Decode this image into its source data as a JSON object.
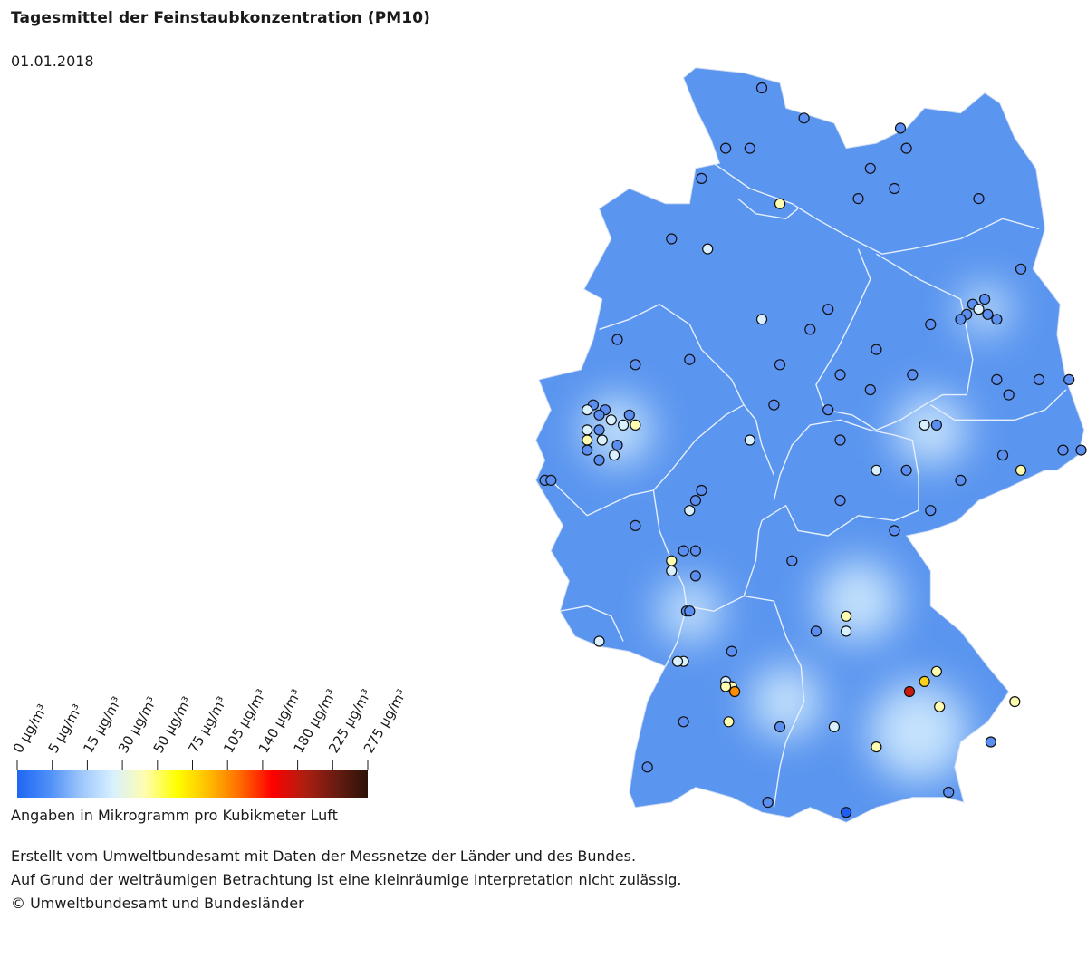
{
  "title": "Tagesmittel der Feinstaubkonzentration (PM10)",
  "date": "01.01.2018",
  "legend": {
    "unit_caption": "Angaben in Mikrogramm pro Kubikmeter Luft",
    "ticks": [
      "0 µg/m³",
      "5 µg/m³",
      "15 µg/m³",
      "30 µg/m³",
      "50 µg/m³",
      "75 µg/m³",
      "105 µg/m³",
      "140 µg/m³",
      "180 µg/m³",
      "225 µg/m³",
      "275 µg/m³"
    ],
    "colors": [
      "#1f66f4",
      "#4d8ff6",
      "#9cc6fb",
      "#d8f0ff",
      "#fffdb0",
      "#ffff00",
      "#ffbe00",
      "#ff6a00",
      "#ff0000",
      "#b01e10",
      "#6a1c12",
      "#2b1208"
    ]
  },
  "footer": {
    "line1": "Erstellt vom Umweltbundesamt mit Daten der Messnetze der Länder und des Bundes.",
    "line2": "Auf Grund der weiträumigen Betrachtung ist eine kleinräumige Interpretation nicht zulässig.",
    "line3": "© Umweltbundesamt und Bundesländer"
  },
  "map": {
    "land_color": "#5a95ef",
    "border_color": "#e6efff",
    "hotspot_color": "#d9f1ff",
    "stations": [
      {
        "lat": 54.7,
        "lon": 9.7,
        "c": "#5a8ef0"
      },
      {
        "lat": 54.4,
        "lon": 10.4,
        "c": "#5a8ef0"
      },
      {
        "lat": 54.1,
        "lon": 9.1,
        "c": "#5a8ef0"
      },
      {
        "lat": 54.1,
        "lon": 9.5,
        "c": "#5a8ef0"
      },
      {
        "lat": 53.8,
        "lon": 8.7,
        "c": "#5a8ef0"
      },
      {
        "lat": 53.55,
        "lon": 10.0,
        "c": "#fffdb0"
      },
      {
        "lat": 54.1,
        "lon": 12.1,
        "c": "#5a8ef0"
      },
      {
        "lat": 54.3,
        "lon": 12.0,
        "c": "#5a8ef0"
      },
      {
        "lat": 53.9,
        "lon": 11.5,
        "c": "#5a8ef0"
      },
      {
        "lat": 53.7,
        "lon": 11.9,
        "c": "#5a8ef0"
      },
      {
        "lat": 53.6,
        "lon": 11.3,
        "c": "#5a8ef0"
      },
      {
        "lat": 53.6,
        "lon": 13.3,
        "c": "#5a8ef0"
      },
      {
        "lat": 53.2,
        "lon": 8.2,
        "c": "#5a8ef0"
      },
      {
        "lat": 53.1,
        "lon": 8.8,
        "c": "#d9f1ff"
      },
      {
        "lat": 52.9,
        "lon": 14.0,
        "c": "#5a8ef0"
      },
      {
        "lat": 52.6,
        "lon": 13.4,
        "c": "#5a8ef0"
      },
      {
        "lat": 52.55,
        "lon": 13.2,
        "c": "#5a8ef0"
      },
      {
        "lat": 52.5,
        "lon": 13.3,
        "c": "#d9f1ff"
      },
      {
        "lat": 52.45,
        "lon": 13.45,
        "c": "#5a8ef0"
      },
      {
        "lat": 52.45,
        "lon": 13.1,
        "c": "#5a8ef0"
      },
      {
        "lat": 52.4,
        "lon": 13.6,
        "c": "#5a8ef0"
      },
      {
        "lat": 52.4,
        "lon": 13.0,
        "c": "#5a8ef0"
      },
      {
        "lat": 52.35,
        "lon": 12.5,
        "c": "#5a8ef0"
      },
      {
        "lat": 52.4,
        "lon": 9.7,
        "c": "#d9f1ff"
      },
      {
        "lat": 52.5,
        "lon": 10.8,
        "c": "#5a8ef0"
      },
      {
        "lat": 52.3,
        "lon": 10.5,
        "c": "#5a8ef0"
      },
      {
        "lat": 52.2,
        "lon": 7.3,
        "c": "#5a8ef0"
      },
      {
        "lat": 52.0,
        "lon": 8.5,
        "c": "#5a8ef0"
      },
      {
        "lat": 51.95,
        "lon": 7.6,
        "c": "#5a8ef0"
      },
      {
        "lat": 52.1,
        "lon": 11.6,
        "c": "#5a8ef0"
      },
      {
        "lat": 51.85,
        "lon": 12.2,
        "c": "#5a8ef0"
      },
      {
        "lat": 51.95,
        "lon": 10.0,
        "c": "#5a8ef0"
      },
      {
        "lat": 51.85,
        "lon": 11.0,
        "c": "#5a8ef0"
      },
      {
        "lat": 51.7,
        "lon": 11.5,
        "c": "#5a8ef0"
      },
      {
        "lat": 51.8,
        "lon": 13.6,
        "c": "#5a8ef0"
      },
      {
        "lat": 51.8,
        "lon": 14.3,
        "c": "#5a8ef0"
      },
      {
        "lat": 51.65,
        "lon": 13.8,
        "c": "#5a8ef0"
      },
      {
        "lat": 51.8,
        "lon": 14.8,
        "c": "#5a8ef0"
      },
      {
        "lat": 51.55,
        "lon": 9.9,
        "c": "#5a8ef0"
      },
      {
        "lat": 51.5,
        "lon": 10.8,
        "c": "#5a8ef0"
      },
      {
        "lat": 51.55,
        "lon": 6.9,
        "c": "#5a8ef0"
      },
      {
        "lat": 51.5,
        "lon": 7.1,
        "c": "#5a8ef0"
      },
      {
        "lat": 51.5,
        "lon": 6.8,
        "c": "#d9f1ff"
      },
      {
        "lat": 51.45,
        "lon": 7.0,
        "c": "#5a8ef0"
      },
      {
        "lat": 51.4,
        "lon": 7.2,
        "c": "#d9f1ff"
      },
      {
        "lat": 51.45,
        "lon": 7.5,
        "c": "#5a8ef0"
      },
      {
        "lat": 51.35,
        "lon": 7.4,
        "c": "#d9f1ff"
      },
      {
        "lat": 51.35,
        "lon": 7.6,
        "c": "#fffdb0"
      },
      {
        "lat": 51.3,
        "lon": 6.8,
        "c": "#d9f1ff"
      },
      {
        "lat": 51.3,
        "lon": 7.0,
        "c": "#5a8ef0"
      },
      {
        "lat": 51.2,
        "lon": 6.8,
        "c": "#fffdb0"
      },
      {
        "lat": 51.2,
        "lon": 7.05,
        "c": "#d9f1ff"
      },
      {
        "lat": 51.15,
        "lon": 7.3,
        "c": "#5a8ef0"
      },
      {
        "lat": 51.1,
        "lon": 6.8,
        "c": "#5a8ef0"
      },
      {
        "lat": 51.0,
        "lon": 7.0,
        "c": "#5a8ef0"
      },
      {
        "lat": 51.05,
        "lon": 7.25,
        "c": "#d9f1ff"
      },
      {
        "lat": 50.8,
        "lon": 6.1,
        "c": "#5a8ef0"
      },
      {
        "lat": 50.8,
        "lon": 6.2,
        "c": "#5a8ef0"
      },
      {
        "lat": 51.35,
        "lon": 12.4,
        "c": "#d9f1ff"
      },
      {
        "lat": 51.35,
        "lon": 12.6,
        "c": "#5a8ef0"
      },
      {
        "lat": 51.2,
        "lon": 11.0,
        "c": "#5a8ef0"
      },
      {
        "lat": 51.05,
        "lon": 13.7,
        "c": "#5a8ef0"
      },
      {
        "lat": 51.1,
        "lon": 14.7,
        "c": "#5a8ef0"
      },
      {
        "lat": 51.1,
        "lon": 15.0,
        "c": "#5a8ef0"
      },
      {
        "lat": 50.9,
        "lon": 11.6,
        "c": "#d9f1ff"
      },
      {
        "lat": 50.9,
        "lon": 12.1,
        "c": "#5a8ef0"
      },
      {
        "lat": 50.9,
        "lon": 14.0,
        "c": "#fffdb0"
      },
      {
        "lat": 50.8,
        "lon": 13.0,
        "c": "#5a8ef0"
      },
      {
        "lat": 50.6,
        "lon": 11.0,
        "c": "#5a8ef0"
      },
      {
        "lat": 50.5,
        "lon": 12.5,
        "c": "#5a8ef0"
      },
      {
        "lat": 51.2,
        "lon": 9.5,
        "c": "#d9f1ff"
      },
      {
        "lat": 50.7,
        "lon": 8.7,
        "c": "#5a8ef0"
      },
      {
        "lat": 50.6,
        "lon": 8.6,
        "c": "#5a8ef0"
      },
      {
        "lat": 50.5,
        "lon": 8.5,
        "c": "#d9f1ff"
      },
      {
        "lat": 50.35,
        "lon": 7.6,
        "c": "#5a8ef0"
      },
      {
        "lat": 50.0,
        "lon": 8.2,
        "c": "#fffdb0"
      },
      {
        "lat": 50.1,
        "lon": 8.4,
        "c": "#5a8ef0"
      },
      {
        "lat": 50.1,
        "lon": 8.6,
        "c": "#5a8ef0"
      },
      {
        "lat": 49.9,
        "lon": 8.2,
        "c": "#d9f1ff"
      },
      {
        "lat": 49.85,
        "lon": 8.6,
        "c": "#5a8ef0"
      },
      {
        "lat": 49.5,
        "lon": 8.45,
        "c": "#5a8ef0"
      },
      {
        "lat": 49.5,
        "lon": 8.5,
        "c": "#5a8ef0"
      },
      {
        "lat": 50.0,
        "lon": 10.2,
        "c": "#5a8ef0"
      },
      {
        "lat": 50.3,
        "lon": 11.9,
        "c": "#5a8ef0"
      },
      {
        "lat": 49.45,
        "lon": 11.1,
        "c": "#fffdb0"
      },
      {
        "lat": 49.3,
        "lon": 11.1,
        "c": "#d9f1ff"
      },
      {
        "lat": 49.3,
        "lon": 10.6,
        "c": "#5a8ef0"
      },
      {
        "lat": 49.2,
        "lon": 7.0,
        "c": "#d9f1ff"
      },
      {
        "lat": 49.0,
        "lon": 8.4,
        "c": "#d9f1ff"
      },
      {
        "lat": 49.0,
        "lon": 8.3,
        "c": "#d9f1ff"
      },
      {
        "lat": 49.1,
        "lon": 9.2,
        "c": "#5a8ef0"
      },
      {
        "lat": 48.8,
        "lon": 9.1,
        "c": "#d9f1ff"
      },
      {
        "lat": 48.75,
        "lon": 9.2,
        "c": "#fffdb0"
      },
      {
        "lat": 48.75,
        "lon": 9.1,
        "c": "#fffdb0"
      },
      {
        "lat": 48.7,
        "lon": 9.25,
        "c": "#ff8c00"
      },
      {
        "lat": 48.7,
        "lon": 12.15,
        "c": "#cc1a0a"
      },
      {
        "lat": 48.9,
        "lon": 12.6,
        "c": "#fffdb0"
      },
      {
        "lat": 48.8,
        "lon": 12.4,
        "c": "#ffd21a"
      },
      {
        "lat": 48.55,
        "lon": 12.65,
        "c": "#fffdb0"
      },
      {
        "lat": 48.6,
        "lon": 13.9,
        "c": "#fffdb0"
      },
      {
        "lat": 48.35,
        "lon": 10.9,
        "c": "#d9f1ff"
      },
      {
        "lat": 48.35,
        "lon": 10.0,
        "c": "#5a8ef0"
      },
      {
        "lat": 48.4,
        "lon": 9.15,
        "c": "#fffdb0"
      },
      {
        "lat": 48.4,
        "lon": 8.4,
        "c": "#5a8ef0"
      },
      {
        "lat": 48.15,
        "lon": 11.6,
        "c": "#fffdb0"
      },
      {
        "lat": 48.2,
        "lon": 13.5,
        "c": "#5a8ef0"
      },
      {
        "lat": 47.95,
        "lon": 7.8,
        "c": "#5a8ef0"
      },
      {
        "lat": 47.7,
        "lon": 12.8,
        "c": "#5a8ef0"
      },
      {
        "lat": 47.6,
        "lon": 9.8,
        "c": "#5a8ef0"
      },
      {
        "lat": 47.5,
        "lon": 11.1,
        "c": "#1f5ef0"
      }
    ]
  }
}
